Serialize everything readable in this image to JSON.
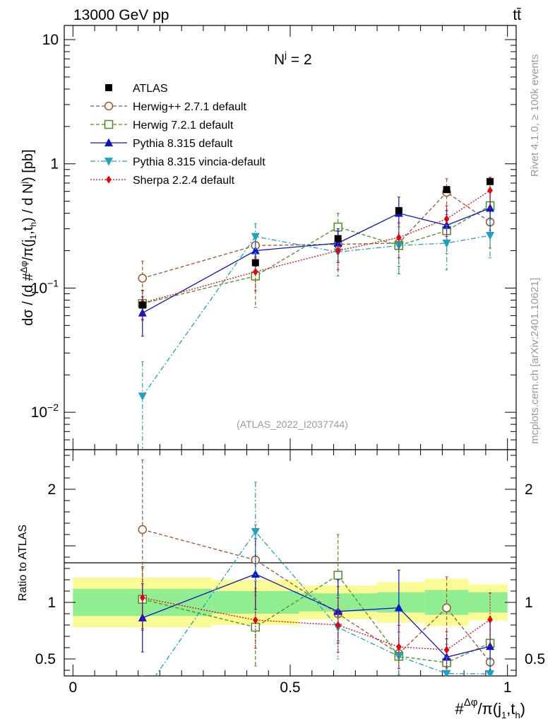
{
  "header": {
    "left": "13000 GeV pp",
    "right": "tt̄"
  },
  "side_labels": {
    "rivet": "Rivet 4.1.0, ≥ 100k events",
    "mcplots": "mcplots.cern.ch [arXiv:2401.10621]"
  },
  "chart_data": {
    "type": "scatter",
    "title": "N^j = 2",
    "analysis_tag": "(ATLAS_2022_I2037744)",
    "ylabel": "dσ / (d #Δφ/π(j1,th) / d Nj) [pb]",
    "xlabel": "#Δφ/π(j1,th)",
    "ratio_ylabel": "Ratio to ATLAS",
    "xlim": [
      -0.02,
      1.02
    ],
    "ylim": [
      0.005,
      13
    ],
    "ratio_ylim": [
      0.35,
      2.35
    ],
    "x_ticks": [
      "0",
      "0.5",
      "1"
    ],
    "y_ticks": [
      "10^-2",
      "10^-1",
      "1",
      "10"
    ],
    "ratio_ticks": [
      "0.5",
      "1",
      "2"
    ],
    "x": [
      0.16,
      0.42,
      0.61,
      0.75,
      0.86,
      0.96
    ],
    "bin_edges": [
      0,
      0.32,
      0.52,
      0.7,
      0.81,
      0.91,
      1.0
    ],
    "data": {
      "name": "ATLAS",
      "values": [
        0.073,
        0.16,
        0.25,
        0.42,
        0.62,
        0.72
      ],
      "band_inner": [
        0.12,
        0.1,
        0.08,
        0.09,
        0.11,
        0.09
      ],
      "band_outer": [
        0.22,
        0.2,
        0.15,
        0.18,
        0.21,
        0.16
      ]
    },
    "series": [
      {
        "name": "Herwig++ 2.7.1 default",
        "color": "#a0522d",
        "marker": "circle-open",
        "dash": "5,3",
        "values": [
          0.12,
          0.22,
          0.225,
          0.23,
          0.59,
          0.34
        ],
        "errors": [
          0.045,
          0.05,
          0.06,
          0.08,
          0.17,
          0.13
        ]
      },
      {
        "name": "Herwig 7.2.1 default",
        "color": "#4a8f1a",
        "marker": "square-open",
        "dash": "5,3",
        "values": [
          0.075,
          0.125,
          0.31,
          0.22,
          0.29,
          0.46
        ],
        "errors": [
          0.02,
          0.055,
          0.09,
          0.09,
          0.1,
          0.17
        ]
      },
      {
        "name": "Pythia 8.315 default",
        "color": "#0a14cc",
        "marker": "triangle-up",
        "dash": "",
        "values": [
          0.063,
          0.2,
          0.23,
          0.4,
          0.32,
          0.44
        ],
        "errors": [
          0.022,
          0.05,
          0.07,
          0.14,
          0.1,
          0.17
        ]
      },
      {
        "name": "Pythia 8.315 vincia-default",
        "color": "#1fa2bf",
        "marker": "triangle-down",
        "dash": "7,3,2,3",
        "values": [
          0.0135,
          0.26,
          0.195,
          0.22,
          0.23,
          0.265
        ],
        "errors": [
          0.012,
          0.07,
          0.07,
          0.09,
          0.09,
          0.09
        ]
      },
      {
        "name": "Sherpa 2.2.4 default",
        "color": "#e8000b",
        "marker": "diamond",
        "dash": "2,2",
        "values": [
          0.076,
          0.135,
          0.2,
          0.255,
          0.36,
          0.61
        ],
        "errors": [
          0.02,
          0.04,
          0.06,
          0.08,
          0.1,
          0.17
        ]
      }
    ]
  }
}
